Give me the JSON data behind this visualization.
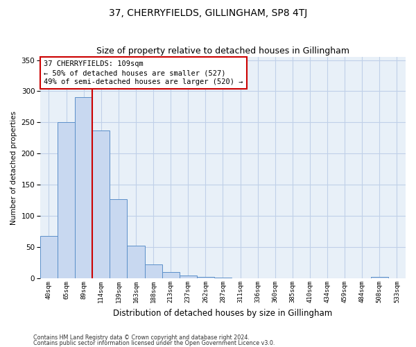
{
  "title": "37, CHERRYFIELDS, GILLINGHAM, SP8 4TJ",
  "subtitle": "Size of property relative to detached houses in Gillingham",
  "xlabel": "Distribution of detached houses by size in Gillingham",
  "ylabel": "Number of detached properties",
  "categories": [
    "40sqm",
    "65sqm",
    "89sqm",
    "114sqm",
    "139sqm",
    "163sqm",
    "188sqm",
    "213sqm",
    "237sqm",
    "262sqm",
    "287sqm",
    "311sqm",
    "336sqm",
    "360sqm",
    "385sqm",
    "410sqm",
    "434sqm",
    "459sqm",
    "484sqm",
    "508sqm",
    "533sqm"
  ],
  "values": [
    68,
    251,
    290,
    237,
    127,
    52,
    22,
    10,
    5,
    2,
    1,
    0,
    0,
    0,
    0,
    0,
    0,
    0,
    0,
    2,
    0
  ],
  "bar_color": "#c8d8f0",
  "bar_edge_color": "#5b8fc9",
  "red_line_x": 2.5,
  "annotation_title": "37 CHERRYFIELDS: 109sqm",
  "annotation_line1": "← 50% of detached houses are smaller (527)",
  "annotation_line2": "49% of semi-detached houses are larger (520) →",
  "footnote1": "Contains HM Land Registry data © Crown copyright and database right 2024.",
  "footnote2": "Contains public sector information licensed under the Open Government Licence v3.0.",
  "ylim": [
    0,
    355
  ],
  "yticks": [
    0,
    50,
    100,
    150,
    200,
    250,
    300,
    350
  ],
  "bg_color": "#ffffff",
  "plot_bg_color": "#e8f0f8",
  "grid_color": "#c0d0e8",
  "title_fontsize": 10,
  "subtitle_fontsize": 9,
  "annotation_box_color": "#ffffff",
  "annotation_box_edge": "#cc0000"
}
